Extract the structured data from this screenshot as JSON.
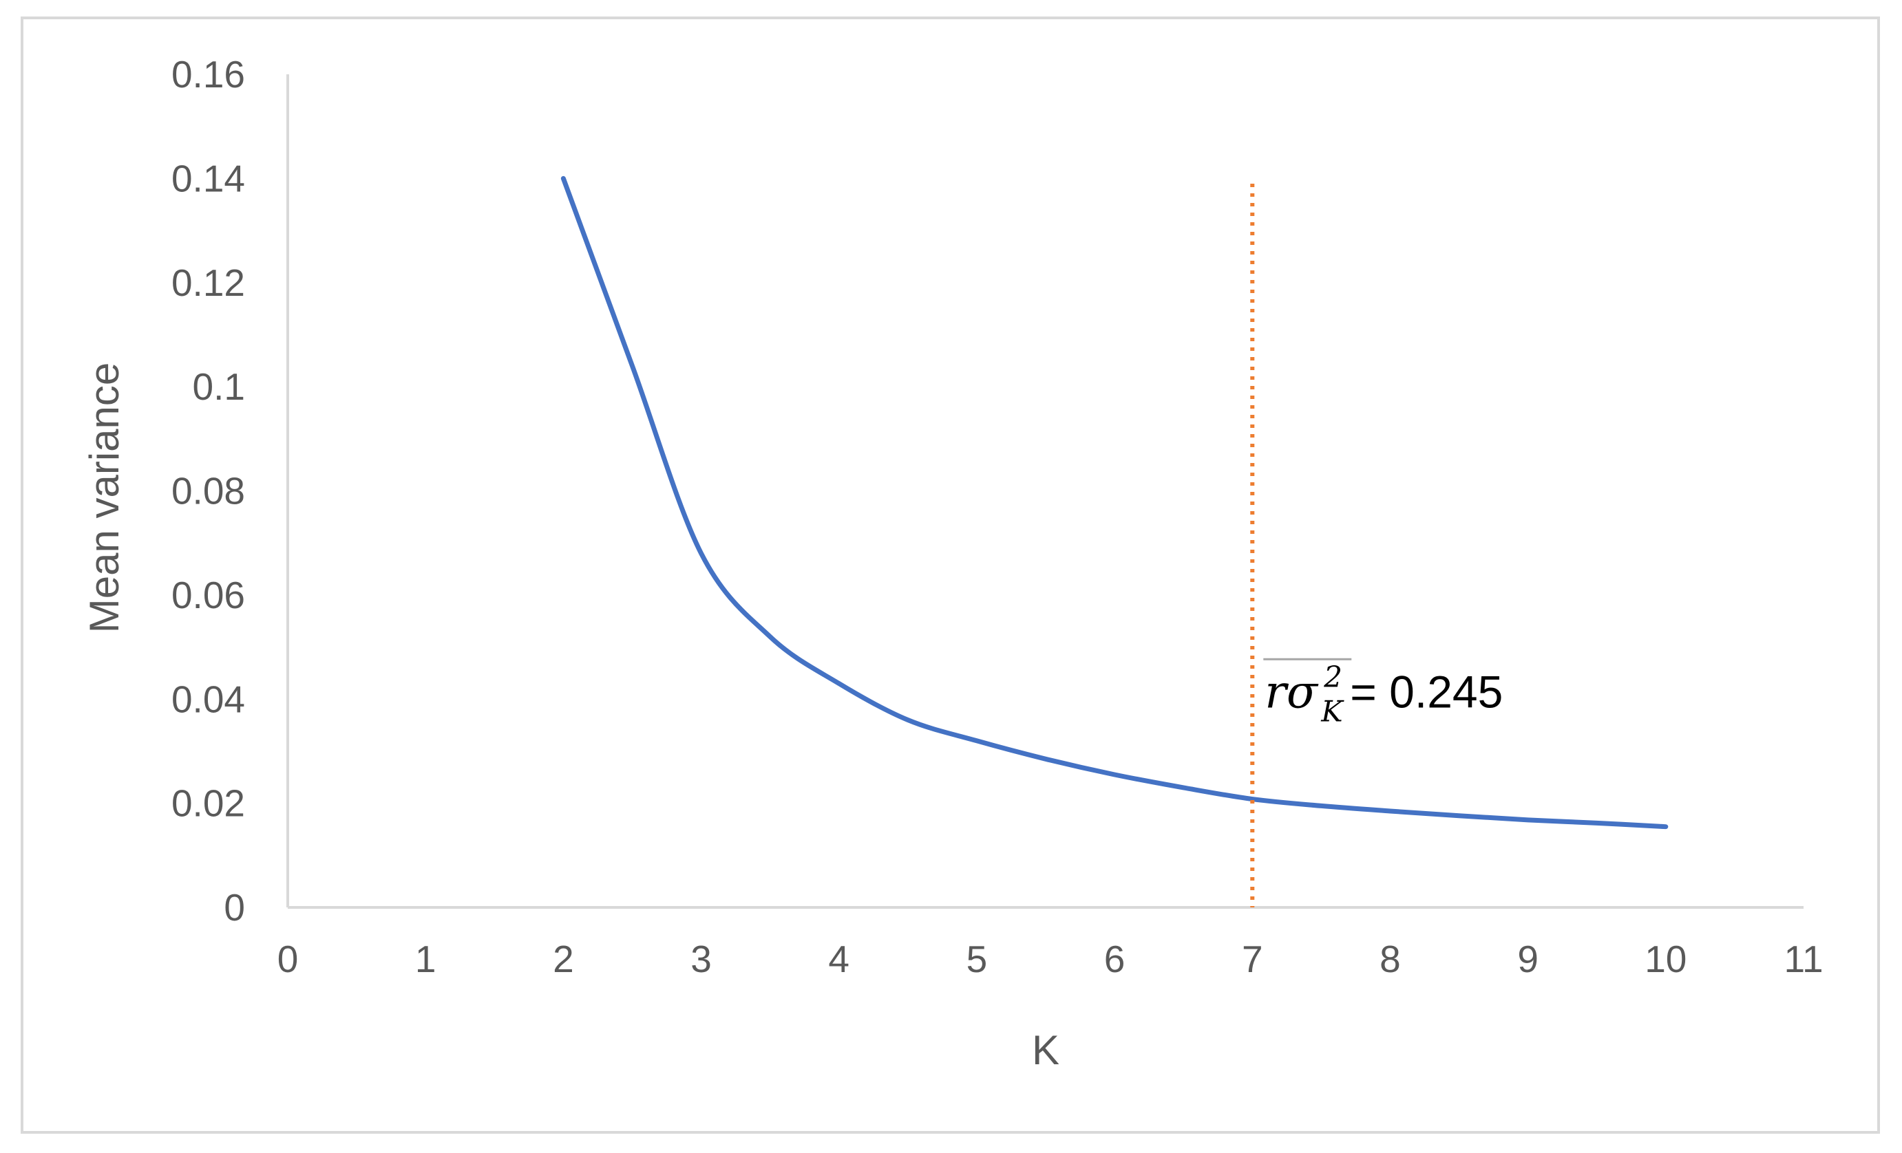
{
  "chart_data": {
    "type": "line",
    "xlabel": "K",
    "ylabel": "Mean variance",
    "xlim": [
      0,
      11
    ],
    "ylim": [
      0,
      0.16
    ],
    "x_ticks": [
      "0",
      "1",
      "2",
      "3",
      "4",
      "5",
      "6",
      "7",
      "8",
      "9",
      "10",
      "11"
    ],
    "y_ticks": [
      "0",
      "0.02",
      "0.04",
      "0.06",
      "0.08",
      "0.1",
      "0.12",
      "0.14",
      "0.16"
    ],
    "grid": false,
    "series": [
      {
        "x": [
          2,
          2.5,
          3,
          3.5,
          4,
          4.5,
          5,
          5.5,
          6,
          6.5,
          7,
          7.5,
          8,
          8.5,
          9,
          9.5,
          10
        ],
        "y": [
          0.14,
          0.104,
          0.068,
          0.052,
          0.043,
          0.036,
          0.032,
          0.0285,
          0.0255,
          0.023,
          0.0208,
          0.0195,
          0.0185,
          0.0176,
          0.0168,
          0.0162,
          0.0155
        ],
        "color": "#4472c4",
        "style": "solid"
      }
    ],
    "reference_line": {
      "x": 7,
      "y_top": 0.139,
      "color": "#ed7d31",
      "style": "dotted"
    },
    "annotation": {
      "symbol": "rσ",
      "subscript": "K",
      "superscript": "2",
      "overline": true,
      "value_text": " = 0.245",
      "x": 7,
      "y": 0.04
    },
    "colors": {
      "axis": "#d9d9d9",
      "tick_text": "#595959",
      "series": "#4472c4",
      "reference": "#ed7d31",
      "overline": "#a6a6a6"
    }
  }
}
